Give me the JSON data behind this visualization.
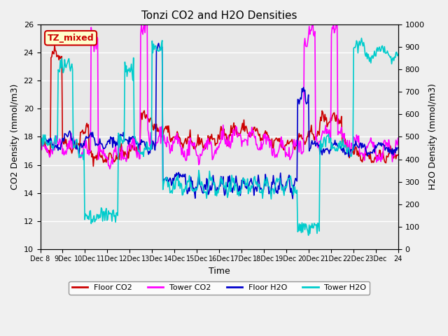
{
  "title": "Tonzi CO2 and H2O Densities",
  "xlabel": "Time",
  "ylabel_left": "CO2 Density (mmol/m3)",
  "ylabel_right": "H2O Density (mmol/m3)",
  "ylim_left": [
    10,
    26
  ],
  "ylim_right": [
    0,
    1000
  ],
  "yticks_left": [
    10,
    12,
    14,
    16,
    18,
    20,
    22,
    24,
    26
  ],
  "yticks_right": [
    0,
    100,
    200,
    300,
    400,
    500,
    600,
    700,
    800,
    900,
    1000
  ],
  "annotation_text": "TZ_mixed",
  "annotation_color": "#cc0000",
  "annotation_bg": "#ffffcc",
  "legend_entries": [
    "Floor CO2",
    "Tower CO2",
    "Floor H2O",
    "Tower H2O"
  ],
  "legend_colors": [
    "#cc0000",
    "#ff00ff",
    "#0000cc",
    "#00cccc"
  ],
  "plot_bg": "#e8e8e8",
  "grid_color": "#ffffff"
}
